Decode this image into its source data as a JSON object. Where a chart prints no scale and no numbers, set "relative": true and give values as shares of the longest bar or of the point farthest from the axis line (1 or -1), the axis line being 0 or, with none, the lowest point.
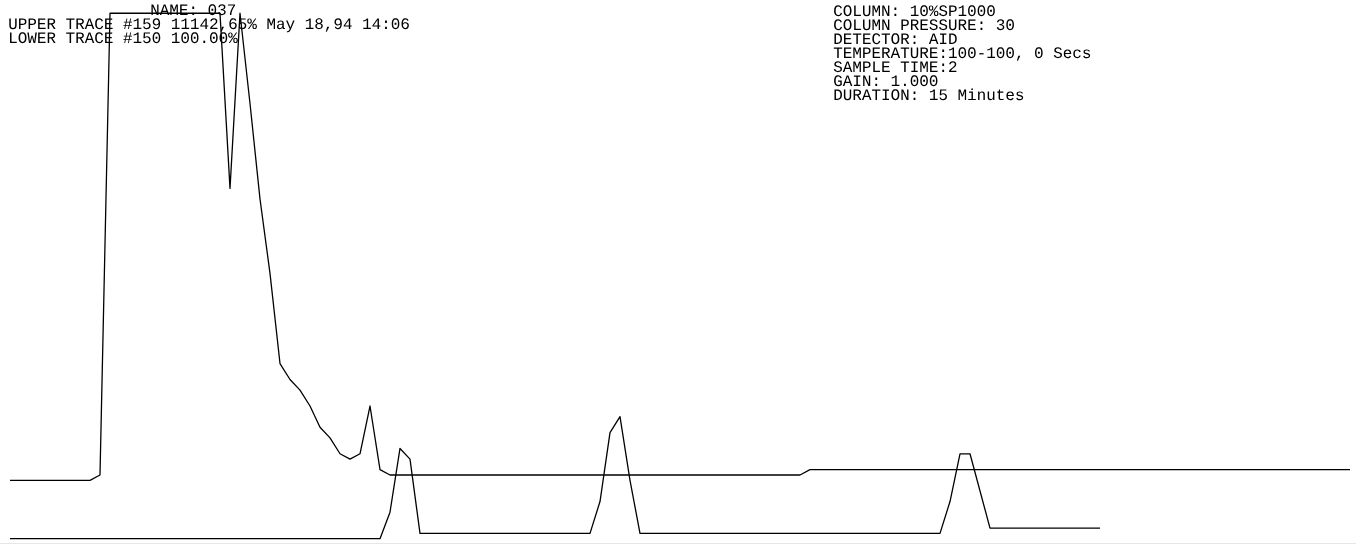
{
  "chart_data": {
    "type": "line",
    "relative": true,
    "categories": [
      null,
      null,
      null,
      null,
      null,
      null,
      null,
      null,
      null,
      null,
      null,
      null,
      null,
      null,
      null,
      null,
      null,
      null,
      null,
      null,
      null,
      null,
      null,
      null,
      null,
      null,
      null,
      null,
      null,
      null,
      null,
      null,
      null,
      null,
      null,
      null,
      null,
      null,
      null,
      null,
      null,
      null,
      null,
      null,
      null,
      null,
      null,
      null,
      null,
      null,
      null,
      null,
      null,
      null,
      null,
      null,
      null,
      null,
      null,
      null,
      null,
      null,
      null,
      null,
      null,
      null,
      null,
      null,
      null,
      null,
      null,
      null,
      null,
      null,
      null,
      null,
      null,
      null,
      null,
      null,
      null,
      null,
      null,
      null,
      null,
      null,
      null,
      null,
      null,
      null,
      null,
      null,
      null,
      null,
      null,
      null,
      null,
      null,
      null,
      null,
      null,
      null,
      null,
      null,
      null,
      null,
      null,
      null,
      null,
      null,
      null,
      null,
      null,
      null,
      null,
      null,
      null,
      null,
      null,
      null,
      null,
      null,
      null,
      null,
      null,
      null,
      null,
      null,
      null,
      null,
      null,
      null,
      null,
      null,
      null
    ],
    "series": [
      {
        "color": "#000000",
        "values": [
          0.12,
          0.12,
          0.12,
          0.12,
          0.12,
          0.12,
          0.12,
          0.12,
          0.12,
          0.13,
          1,
          1,
          1,
          1,
          1,
          1,
          1,
          1,
          1,
          1,
          1,
          1,
          0.67,
          1,
          0.83,
          0.65,
          0.51,
          0.34,
          0.31,
          0.29,
          0.26,
          0.22,
          0.2,
          0.17,
          0.16,
          0.17,
          0.26,
          0.14,
          0.13,
          0.13,
          0.13,
          0.13,
          0.13,
          0.13,
          0.13,
          0.13,
          0.13,
          0.13,
          0.13,
          0.13,
          0.13,
          0.13,
          0.13,
          0.13,
          0.13,
          0.13,
          0.13,
          0.13,
          0.13,
          0.13,
          0.13,
          0.13,
          0.13,
          0.13,
          0.13,
          0.13,
          0.13,
          0.13,
          0.13,
          0.13,
          0.13,
          0.13,
          0.13,
          0.13,
          0.13,
          0.13,
          0.13,
          0.13,
          0.13,
          0.13,
          0.14,
          0.14,
          0.14,
          0.14,
          0.14,
          0.14,
          0.14,
          0.14,
          0.14,
          0.14,
          0.14,
          0.14,
          0.14,
          0.14,
          0.14,
          0.14,
          0.14,
          0.14,
          0.14,
          0.14,
          0.14,
          0.14,
          0.14,
          0.14,
          0.14,
          0.14,
          0.14,
          0.14,
          0.14,
          0.14,
          0.14,
          0.14,
          0.14,
          0.14,
          0.14,
          0.14,
          0.14,
          0.14,
          0.14,
          0.14,
          0.14,
          0.14,
          0.14,
          0.14,
          0.14,
          0.14,
          0.14,
          0.14,
          0.14,
          0.14,
          0.14,
          0.14,
          0.14,
          0.14,
          0.14
        ]
      },
      {
        "color": "#000000",
        "values": [
          0.01,
          0.01,
          0.01,
          0.01,
          0.01,
          0.01,
          0.01,
          0.01,
          0.01,
          0.01,
          0.01,
          0.01,
          0.01,
          0.01,
          0.01,
          0.01,
          0.01,
          0.01,
          0.01,
          0.01,
          0.01,
          0.01,
          0.01,
          0.01,
          0.01,
          0.01,
          0.01,
          0.01,
          0.01,
          0.01,
          0.01,
          0.01,
          0.01,
          0.01,
          0.01,
          0.01,
          0.01,
          0.01,
          0.06,
          0.18,
          0.16,
          0.02,
          0.02,
          0.02,
          0.02,
          0.02,
          0.02,
          0.02,
          0.02,
          0.02,
          0.02,
          0.02,
          0.02,
          0.02,
          0.02,
          0.02,
          0.02,
          0.02,
          0.02,
          0.08,
          0.21,
          0.24,
          0.12,
          0.02,
          0.02,
          0.02,
          0.02,
          0.02,
          0.02,
          0.02,
          0.02,
          0.02,
          0.02,
          0.02,
          0.02,
          0.02,
          0.02,
          0.02,
          0.02,
          0.02,
          0.02,
          0.02,
          0.02,
          0.02,
          0.02,
          0.02,
          0.02,
          0.02,
          0.02,
          0.02,
          0.02,
          0.02,
          0.02,
          0.02,
          0.08,
          0.17,
          0.17,
          0.1,
          0.03,
          0.03,
          0.03,
          0.03,
          0.03,
          0.03,
          0.03,
          0.03,
          0.03,
          0.03,
          0.03,
          0.03,
          null,
          null,
          null,
          null,
          null,
          null,
          null,
          null,
          null,
          null,
          null,
          null,
          null,
          null,
          null,
          null,
          null,
          null,
          null,
          null,
          null,
          null,
          null,
          null,
          null
        ]
      }
    ],
    "annotations": [
      "NAME: 037",
      "UPPER TRACE #159 11142,65% May 18,94 14:06",
      "LOWER TRACE #150 100.00%",
      "COLUMN:      10%SP1000",
      "COLUMN PRESSURE: 30",
      "DETECTOR:    AID",
      "TEMPERATURE:100-100,  0 Secs",
      "SAMPLE TIME:2",
      "GAIN:         1.000",
      "DURATION:    15 Minutes"
    ]
  }
}
